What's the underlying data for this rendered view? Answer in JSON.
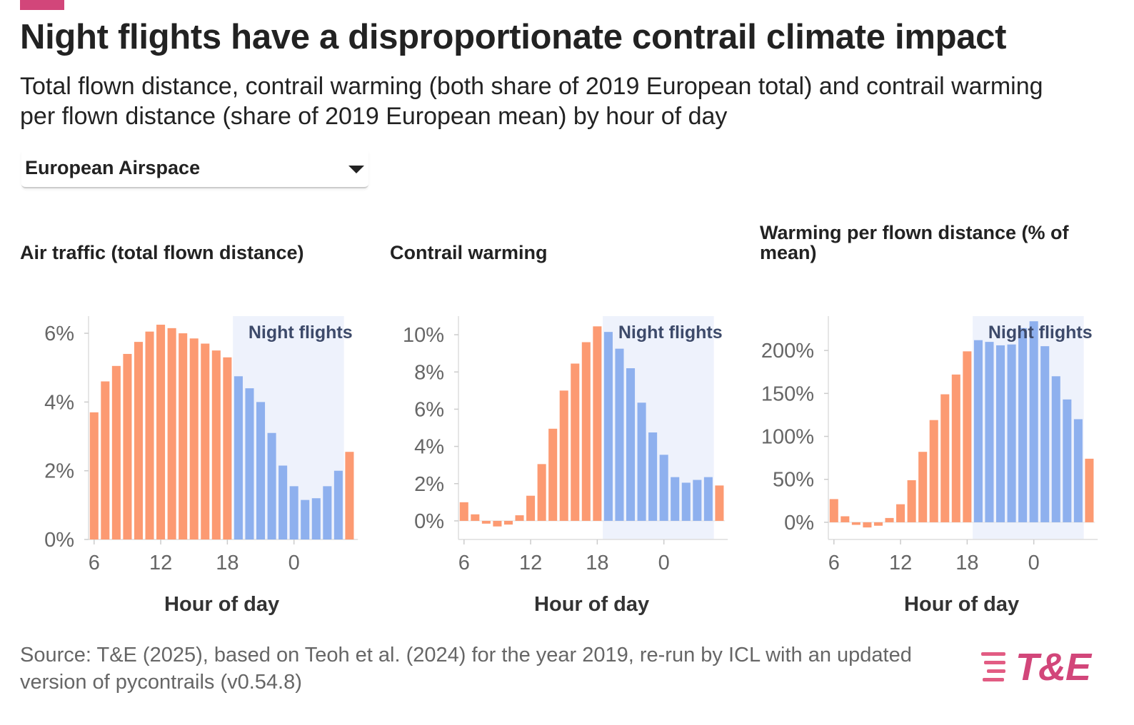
{
  "title": "Night flights have a disproportionate contrail climate impact",
  "subtitle": "Total flown distance, contrail warming (both share of 2019 European total) and contrail warming per flown distance (share of 2019 European mean) by hour of day",
  "dropdown": {
    "selected": "European Airspace"
  },
  "source": "Source: T&E (2025), based on Teoh et al. (2024) for the year 2019, re-run by ICL with an updated version of pycontrails (v0.54.8)",
  "logo": "T&E",
  "colors": {
    "day": "#fc9a72",
    "night": "#8eb0ee",
    "night_band": "#eef2fc",
    "accent": "#d2467a"
  },
  "chart_data": [
    {
      "type": "bar",
      "title": "Air traffic (total flown distance)",
      "xlabel": "Hour of day",
      "ylabel": "",
      "categories": [
        6,
        7,
        8,
        9,
        10,
        11,
        12,
        13,
        14,
        15,
        16,
        17,
        18,
        19,
        20,
        21,
        22,
        23,
        0,
        1,
        2,
        3,
        4,
        5
      ],
      "values": [
        3.7,
        4.6,
        5.05,
        5.4,
        5.75,
        6.05,
        6.25,
        6.15,
        6.0,
        5.85,
        5.7,
        5.5,
        5.3,
        4.75,
        4.4,
        4.0,
        3.1,
        2.15,
        1.55,
        1.15,
        1.2,
        1.55,
        2.0,
        2.55
      ],
      "ylim": [
        0,
        6.5
      ],
      "yticks": [
        0,
        2,
        4,
        6
      ],
      "ytick_labels": [
        "0%",
        "2%",
        "4%",
        "6%"
      ],
      "xticks": [
        6,
        12,
        18,
        0
      ],
      "xtick_labels": [
        "6",
        "12",
        "18",
        "0"
      ],
      "night_label": "Night flights",
      "night_hours": [
        19,
        20,
        21,
        22,
        23,
        0,
        1,
        2,
        3,
        4
      ]
    },
    {
      "type": "bar",
      "title": "Contrail warming",
      "xlabel": "Hour of day",
      "ylabel": "",
      "categories": [
        6,
        7,
        8,
        9,
        10,
        11,
        12,
        13,
        14,
        15,
        16,
        17,
        18,
        19,
        20,
        21,
        22,
        23,
        0,
        1,
        2,
        3,
        4,
        5
      ],
      "values": [
        1.0,
        0.35,
        -0.15,
        -0.3,
        -0.2,
        0.3,
        1.35,
        3.05,
        4.95,
        7.0,
        8.45,
        9.6,
        10.45,
        10.15,
        9.25,
        8.2,
        6.35,
        4.75,
        3.55,
        2.35,
        2.05,
        2.2,
        2.35,
        1.9
      ],
      "ylim": [
        -1.0,
        11.0
      ],
      "yticks": [
        0,
        2,
        4,
        6,
        8,
        10
      ],
      "ytick_labels": [
        "0%",
        "2%",
        "4%",
        "6%",
        "8%",
        "10%"
      ],
      "xticks": [
        6,
        12,
        18,
        0
      ],
      "xtick_labels": [
        "6",
        "12",
        "18",
        "0"
      ],
      "night_label": "Night flights",
      "night_hours": [
        19,
        20,
        21,
        22,
        23,
        0,
        1,
        2,
        3,
        4
      ]
    },
    {
      "type": "bar",
      "title": "Warming per flown distance (% of mean)",
      "xlabel": "Hour of day",
      "ylabel": "",
      "categories": [
        6,
        7,
        8,
        9,
        10,
        11,
        12,
        13,
        14,
        15,
        16,
        17,
        18,
        19,
        20,
        21,
        22,
        23,
        0,
        1,
        2,
        3,
        4,
        5
      ],
      "values": [
        27,
        7,
        -3,
        -6,
        -4,
        5,
        21,
        49,
        82,
        119,
        149,
        172,
        199,
        212,
        210,
        206,
        207,
        226,
        234,
        205,
        170,
        143,
        120,
        74
      ],
      "ylim": [
        -20,
        240
      ],
      "yticks": [
        0,
        50,
        100,
        150,
        200
      ],
      "ytick_labels": [
        "0%",
        "50%",
        "100%",
        "150%",
        "200%"
      ],
      "xticks": [
        6,
        12,
        18,
        0
      ],
      "xtick_labels": [
        "6",
        "12",
        "18",
        "0"
      ],
      "night_label": "Night flights",
      "night_hours": [
        19,
        20,
        21,
        22,
        23,
        0,
        1,
        2,
        3,
        4
      ]
    }
  ]
}
